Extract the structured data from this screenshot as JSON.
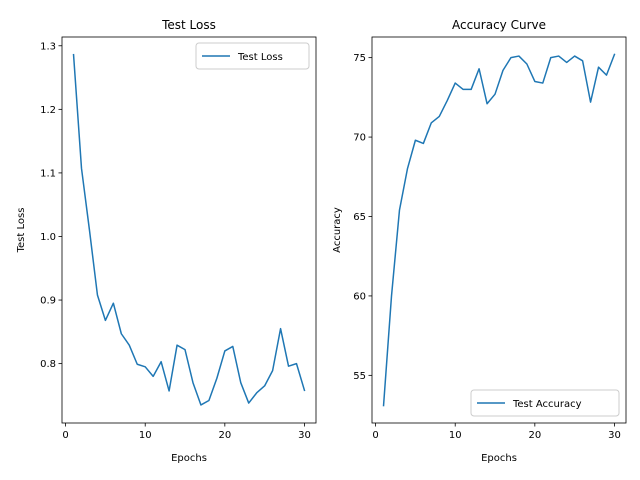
{
  "chart_data": [
    {
      "type": "line",
      "title": "Test Loss",
      "xlabel": "Epochs",
      "ylabel": "Test Loss",
      "xlim": [
        -0.45,
        31.45
      ],
      "ylim": [
        0.7066,
        1.3138
      ],
      "xticks": [
        0,
        10,
        20,
        30
      ],
      "xtick_labels": [
        "0",
        "10",
        "20",
        "30"
      ],
      "yticks": [
        0.8,
        0.9,
        1.0,
        1.1,
        1.2,
        1.3
      ],
      "ytick_labels": [
        "0.8",
        "0.9",
        "1.0",
        "1.1",
        "1.2",
        "1.3"
      ],
      "grid": false,
      "legend_position": "upper-right",
      "series_color": "#1f77b4",
      "series": [
        {
          "name": "Test Loss",
          "x": [
            1,
            2,
            3,
            4,
            5,
            6,
            7,
            8,
            9,
            10,
            11,
            12,
            13,
            14,
            15,
            16,
            17,
            18,
            19,
            20,
            21,
            22,
            23,
            24,
            25,
            26,
            27,
            28,
            29,
            30
          ],
          "values": [
            1.286,
            1.107,
            1.01,
            0.908,
            0.868,
            0.895,
            0.847,
            0.829,
            0.799,
            0.795,
            0.78,
            0.803,
            0.757,
            0.829,
            0.822,
            0.77,
            0.735,
            0.742,
            0.777,
            0.82,
            0.827,
            0.77,
            0.738,
            0.754,
            0.765,
            0.789,
            0.855,
            0.796,
            0.8,
            0.758
          ]
        }
      ]
    },
    {
      "type": "line",
      "title": "Accuracy Curve",
      "xlabel": "Epochs",
      "ylabel": "Accuracy",
      "xlim": [
        -0.45,
        31.45
      ],
      "ylim": [
        52.0,
        76.3
      ],
      "xticks": [
        0,
        10,
        20,
        30
      ],
      "xtick_labels": [
        "0",
        "10",
        "20",
        "30"
      ],
      "yticks": [
        55,
        60,
        65,
        70,
        75
      ],
      "ytick_labels": [
        "55",
        "60",
        "65",
        "70",
        "75"
      ],
      "grid": false,
      "legend_position": "lower-right",
      "series_color": "#1f77b4",
      "series": [
        {
          "name": "Test Accuracy",
          "x": [
            1,
            2,
            3,
            4,
            5,
            6,
            7,
            8,
            9,
            10,
            11,
            12,
            13,
            14,
            15,
            16,
            17,
            18,
            19,
            20,
            21,
            22,
            23,
            24,
            25,
            26,
            27,
            28,
            29,
            30
          ],
          "values": [
            53.1,
            60.0,
            65.4,
            68.0,
            69.8,
            69.6,
            70.9,
            71.3,
            72.3,
            73.4,
            73.0,
            73.0,
            74.3,
            72.1,
            72.7,
            74.2,
            75.0,
            75.1,
            74.6,
            73.5,
            73.4,
            75.0,
            75.1,
            74.7,
            75.1,
            74.8,
            72.2,
            74.4,
            73.9,
            75.2
          ]
        }
      ]
    }
  ]
}
